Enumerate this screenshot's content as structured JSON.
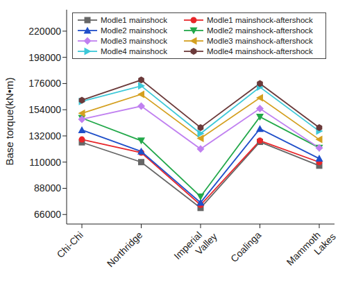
{
  "chart_data": {
    "type": "line",
    "y_label": "Base torque(kN•m)",
    "categories": [
      "Chi-Chi",
      "Northridge",
      "Imperial Valley",
      "Coalinga",
      "Mammoth Lakes"
    ],
    "ylim": [
      58000,
      238000
    ],
    "yticks": [
      66000,
      88000,
      110000,
      132000,
      154000,
      176000,
      198000,
      220000
    ],
    "grid": false,
    "legend": "top",
    "series": [
      {
        "name": "Modle1 mainshock",
        "color": "#666666",
        "marker": "square",
        "values": [
          126600,
          110000,
          71500,
          127000,
          107000
        ]
      },
      {
        "name": "Modle1 mainshock-aftershock",
        "color": "#e8262a",
        "marker": "circle",
        "values": [
          129000,
          118000,
          74000,
          128000,
          110000
        ]
      },
      {
        "name": "Modle2 mainshock",
        "color": "#1f4fc9",
        "marker": "triangle-up",
        "values": [
          137000,
          119000,
          76000,
          138000,
          113000
        ]
      },
      {
        "name": "Modle2 mainshock-aftershock",
        "color": "#22a84a",
        "marker": "triangle-down",
        "values": [
          147000,
          128000,
          81000,
          148000,
          122000
        ]
      },
      {
        "name": "Modle3 mainshock",
        "color": "#c080f0",
        "marker": "diamond",
        "values": [
          146000,
          157000,
          121000,
          155000,
          122000
        ]
      },
      {
        "name": "Modle3 mainshock-aftershock",
        "color": "#d4a020",
        "marker": "triangle-left",
        "values": [
          151000,
          167000,
          130000,
          164000,
          129000
        ]
      },
      {
        "name": "Modle4 mainshock",
        "color": "#3cc8d8",
        "marker": "triangle-right",
        "values": [
          161000,
          174000,
          134000,
          173000,
          136000
        ]
      },
      {
        "name": "Modle4 mainshock-aftershock",
        "color": "#6b3a3a",
        "marker": "hexagon",
        "values": [
          162000,
          179000,
          139000,
          176000,
          139000
        ]
      }
    ]
  }
}
